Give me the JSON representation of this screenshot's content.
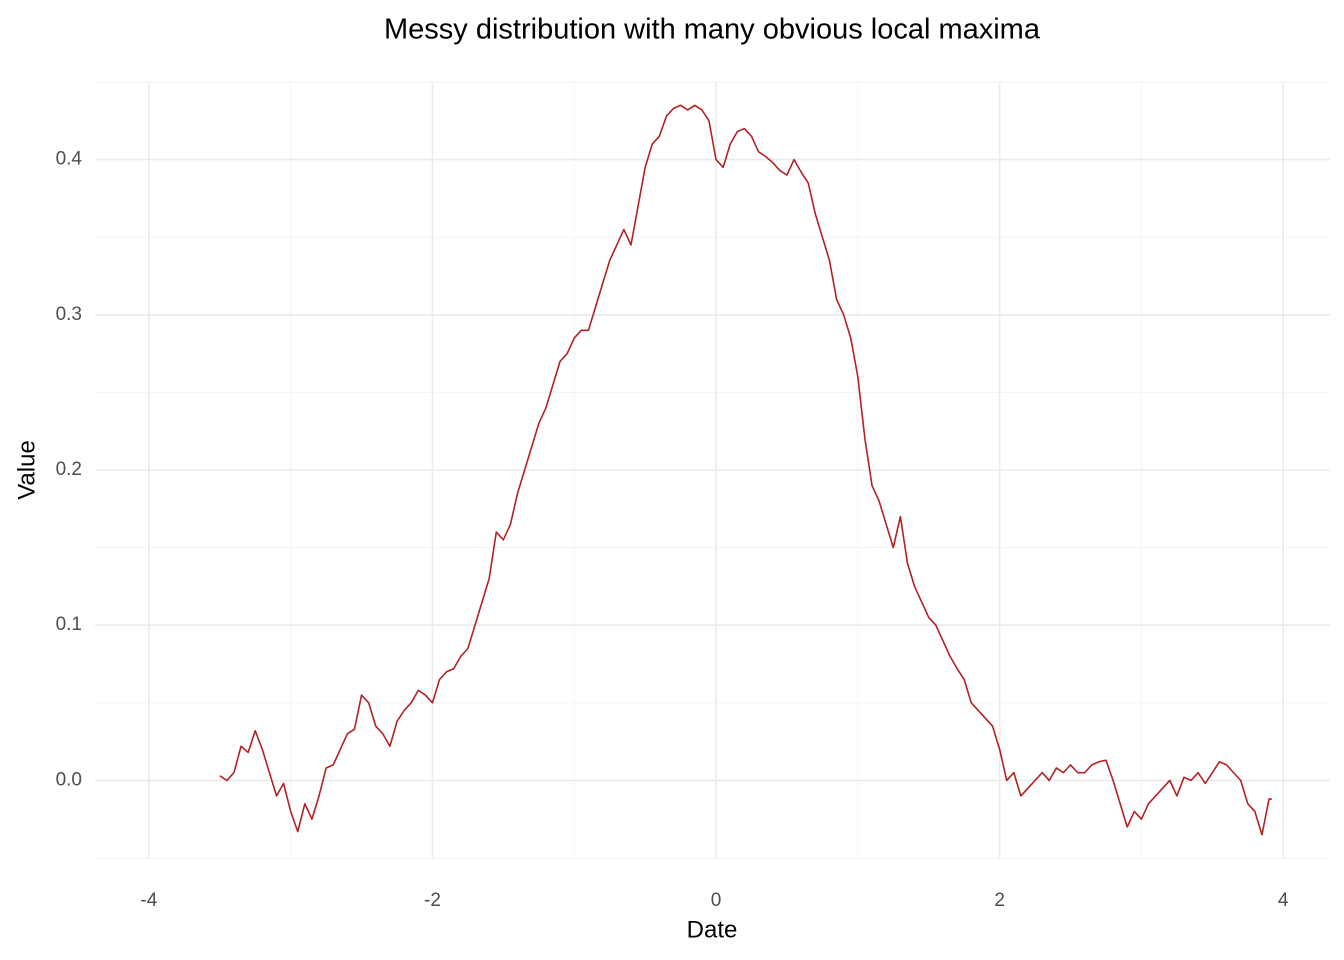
{
  "chart_data": {
    "type": "line",
    "title": "Messy distribution with many obvious local maxima",
    "x_label": "Date",
    "y_label": "Value",
    "x": [
      -3.5,
      -3.45,
      -3.4,
      -3.35,
      -3.3,
      -3.25,
      -3.2,
      -3.15,
      -3.1,
      -3.05,
      -3,
      -2.95,
      -2.9,
      -2.85,
      -2.8,
      -2.75,
      -2.7,
      -2.65,
      -2.6,
      -2.55,
      -2.5,
      -2.45,
      -2.4,
      -2.35,
      -2.3,
      -2.25,
      -2.2,
      -2.15,
      -2.1,
      -2.05,
      -2,
      -1.95,
      -1.9,
      -1.85,
      -1.8,
      -1.75,
      -1.7,
      -1.65,
      -1.6,
      -1.55,
      -1.5,
      -1.45,
      -1.4,
      -1.35,
      -1.3,
      -1.25,
      -1.2,
      -1.15,
      -1.1,
      -1.05,
      -1,
      -0.95,
      -0.9,
      -0.85,
      -0.8,
      -0.75,
      -0.7,
      -0.65,
      -0.6,
      -0.55,
      -0.5,
      -0.45,
      -0.4,
      -0.35,
      -0.3,
      -0.25,
      -0.2,
      -0.15,
      -0.1,
      -0.05,
      0,
      0.05,
      0.1,
      0.15,
      0.2,
      0.25,
      0.3,
      0.35,
      0.4,
      0.45,
      0.5,
      0.55,
      0.6,
      0.65,
      0.7,
      0.75,
      0.8,
      0.85,
      0.9,
      0.95,
      1,
      1.05,
      1.1,
      1.15,
      1.2,
      1.25,
      1.3,
      1.35,
      1.4,
      1.45,
      1.5,
      1.55,
      1.6,
      1.65,
      1.7,
      1.75,
      1.8,
      1.85,
      1.9,
      1.95,
      2,
      2.05,
      2.1,
      2.15,
      2.2,
      2.25,
      2.3,
      2.35,
      2.4,
      2.45,
      2.5,
      2.55,
      2.6,
      2.65,
      2.7,
      2.75,
      2.8,
      2.85,
      2.9,
      2.95,
      3,
      3.05,
      3.1,
      3.15,
      3.2,
      3.25,
      3.3,
      3.35,
      3.4,
      3.45,
      3.5,
      3.55,
      3.6,
      3.65,
      3.7,
      3.75,
      3.8,
      3.85,
      3.9,
      3.92
    ],
    "values": [
      0.003,
      0.0,
      0.005,
      0.022,
      0.018,
      0.032,
      0.02,
      0.005,
      -0.01,
      -0.002,
      -0.02,
      -0.033,
      -0.015,
      -0.025,
      -0.01,
      0.008,
      0.01,
      0.02,
      0.03,
      0.033,
      0.055,
      0.05,
      0.035,
      0.03,
      0.022,
      0.038,
      0.045,
      0.05,
      0.058,
      0.055,
      0.05,
      0.065,
      0.07,
      0.072,
      0.08,
      0.085,
      0.1,
      0.115,
      0.13,
      0.16,
      0.155,
      0.165,
      0.185,
      0.2,
      0.215,
      0.23,
      0.24,
      0.255,
      0.27,
      0.275,
      0.285,
      0.29,
      0.29,
      0.305,
      0.32,
      0.335,
      0.345,
      0.355,
      0.345,
      0.37,
      0.395,
      0.41,
      0.415,
      0.428,
      0.433,
      0.435,
      0.432,
      0.435,
      0.432,
      0.425,
      0.4,
      0.395,
      0.41,
      0.418,
      0.42,
      0.415,
      0.405,
      0.402,
      0.398,
      0.393,
      0.39,
      0.4,
      0.392,
      0.385,
      0.365,
      0.35,
      0.335,
      0.31,
      0.3,
      0.285,
      0.26,
      0.22,
      0.19,
      0.18,
      0.165,
      0.15,
      0.17,
      0.14,
      0.125,
      0.115,
      0.105,
      0.1,
      0.09,
      0.08,
      0.072,
      0.065,
      0.05,
      0.045,
      0.04,
      0.035,
      0.02,
      0.0,
      0.005,
      -0.01,
      -0.005,
      0.0,
      0.005,
      0.0,
      0.008,
      0.005,
      0.01,
      0.005,
      0.005,
      0.01,
      0.012,
      0.013,
      0.0,
      -0.015,
      -0.03,
      -0.02,
      -0.025,
      -0.015,
      -0.01,
      -0.005,
      0.0,
      -0.01,
      0.002,
      0.0,
      0.005,
      -0.002,
      0.005,
      0.012,
      0.01,
      0.005,
      0.0,
      -0.015,
      -0.02,
      -0.035,
      -0.012,
      -0.012
    ],
    "color": "#b22222",
    "xlim": [
      -4.38,
      4.33
    ],
    "xticks": [
      -4,
      -2,
      0,
      2,
      4
    ],
    "ylim": [
      -0.05,
      0.45
    ],
    "yticks": [
      {
        "value": 0,
        "label": "0.0"
      },
      0.1,
      0.2,
      0.3,
      0.4
    ],
    "grid": true
  }
}
